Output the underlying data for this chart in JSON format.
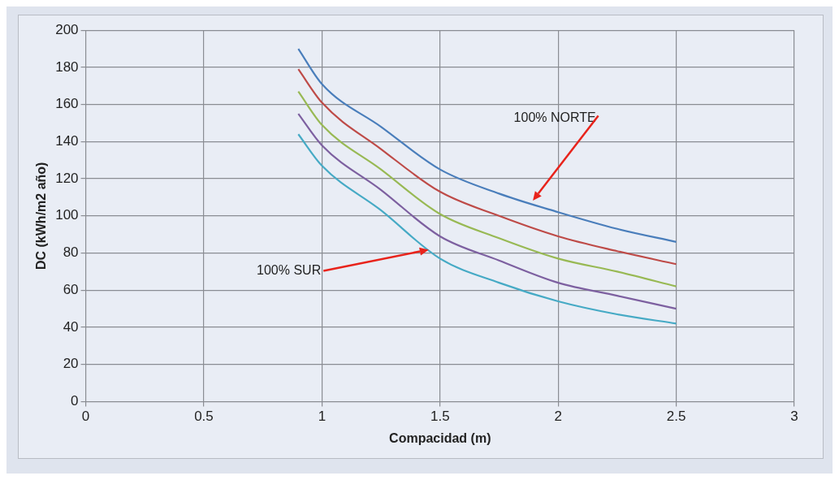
{
  "chart_data": {
    "type": "line",
    "xlabel": "Compacidad (m)",
    "ylabel": "DC (kWh/m2 año)",
    "xlim": [
      0,
      3
    ],
    "xticks": [
      0,
      0.5,
      1,
      1.5,
      2,
      2.5,
      3
    ],
    "ylim": [
      0,
      200
    ],
    "yticks": [
      0,
      20,
      40,
      60,
      80,
      100,
      120,
      140,
      160,
      180,
      200
    ],
    "grid": true,
    "legend": false,
    "marker": "none",
    "line_style": "solid",
    "x": [
      0.9,
      1,
      1.25,
      1.5,
      1.75,
      2,
      2.25,
      2.5
    ],
    "series": [
      {
        "color": "#4a7ebb",
        "values": [
          190,
          171,
          148,
          125,
          112,
          102,
          93,
          86
        ]
      },
      {
        "color": "#be4b48",
        "values": [
          179,
          161,
          136,
          113,
          100,
          89,
          81,
          74
        ]
      },
      {
        "color": "#98b954",
        "values": [
          167,
          149,
          125,
          101,
          88,
          77,
          70,
          62
        ]
      },
      {
        "color": "#7d60a0",
        "values": [
          155,
          138,
          114,
          89,
          76,
          64,
          57,
          50
        ]
      },
      {
        "color": "#46aac5",
        "values": [
          144,
          127,
          103,
          77,
          64,
          54,
          47,
          42
        ]
      }
    ],
    "annotations": [
      "100% NORTE",
      "100% SUR"
    ]
  }
}
